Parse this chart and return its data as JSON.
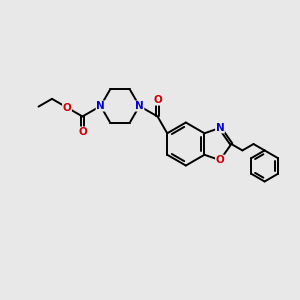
{
  "background_color": "#e8e8e8",
  "bond_color": "#000000",
  "N_color": "#0000cc",
  "O_color": "#cc0000",
  "line_width": 1.4,
  "figsize": [
    3.0,
    3.0
  ],
  "dpi": 100,
  "xlim": [
    0,
    10
  ],
  "ylim": [
    1,
    9
  ]
}
